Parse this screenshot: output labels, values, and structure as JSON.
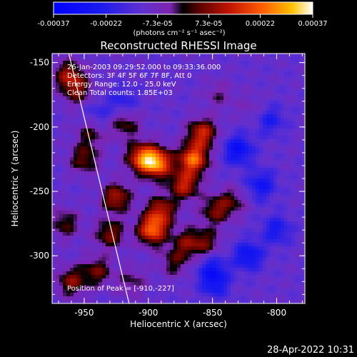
{
  "chart_data": {
    "type": "heatmap",
    "title": "Reconstructed RHESSI Image",
    "xlabel": "Heliocentric X (arcsec)",
    "ylabel": "Heliocentric Y (arcsec)",
    "xlim": [
      -975,
      -778
    ],
    "ylim": [
      -337,
      -143
    ],
    "x_ticks": [
      -950,
      -900,
      -850,
      -800
    ],
    "y_ticks": [
      -150,
      -200,
      -250,
      -300
    ],
    "colorbar": {
      "range": [
        -0.00037,
        0.00037
      ],
      "tick_values": [
        -0.00037,
        -0.00022,
        -7.3e-05,
        7.3e-05,
        0.00022,
        0.00037
      ],
      "tick_labels": [
        "-0.00037",
        "-0.00022",
        "-7.3e-05",
        "7.3e-05",
        "0.00022",
        "0.00037"
      ],
      "unit_label": "(photons cm⁻² s⁻¹ asec⁻²)"
    },
    "info_lines": [
      "26-Jan-2003 09:29:52.000 to 09:33:36.000",
      "Detectors: 3F 4F 5F 6F 7F 8F, Att 0",
      "Energy Range: 12.0 - 25.0 keV",
      "Clean    Total counts: 1.85E+03"
    ],
    "peak_label": "Position of Peak = [-910,-227]",
    "peak": [
      -910,
      -227
    ],
    "limb_line": [
      [
        -962,
        -143
      ],
      [
        -915,
        -337
      ]
    ],
    "blobs": [
      {
        "x": -893,
        "y": -228,
        "v": 0.00035
      },
      {
        "x": -905,
        "y": -224,
        "v": 0.0003
      },
      {
        "x": -865,
        "y": -225,
        "v": 0.00033
      },
      {
        "x": -858,
        "y": -205,
        "v": 0.00025
      },
      {
        "x": -872,
        "y": -245,
        "v": 0.00024
      },
      {
        "x": -897,
        "y": -280,
        "v": 0.00032
      },
      {
        "x": -890,
        "y": -265,
        "v": 0.00022
      },
      {
        "x": -925,
        "y": -255,
        "v": 0.00022
      },
      {
        "x": -930,
        "y": -283,
        "v": 0.00018
      },
      {
        "x": -940,
        "y": -312,
        "v": 0.00016
      },
      {
        "x": -960,
        "y": -320,
        "v": 0.00018
      },
      {
        "x": -962,
        "y": -160,
        "v": 0.0002
      },
      {
        "x": -955,
        "y": -172,
        "v": 0.00015
      },
      {
        "x": -950,
        "y": -225,
        "v": 0.00016
      },
      {
        "x": -945,
        "y": -205,
        "v": 0.00012
      },
      {
        "x": -918,
        "y": -198,
        "v": 0.00014
      },
      {
        "x": -848,
        "y": -265,
        "v": 0.00016
      },
      {
        "x": -855,
        "y": -290,
        "v": 0.00014
      },
      {
        "x": -835,
        "y": -258,
        "v": 0.00012
      },
      {
        "x": -880,
        "y": -305,
        "v": 0.00012
      },
      {
        "x": -870,
        "y": -290,
        "v": 0.00016
      },
      {
        "x": -965,
        "y": -275,
        "v": 0.00014
      },
      {
        "x": -913,
        "y": -320,
        "v": 0.0001
      },
      {
        "x": -845,
        "y": -175,
        "v": 8e-05
      },
      {
        "x": -820,
        "y": -185,
        "v": 5e-05
      }
    ],
    "negatives": [
      {
        "x": -830,
        "y": -218,
        "v": -0.0002
      },
      {
        "x": -812,
        "y": -245,
        "v": -0.00016
      },
      {
        "x": -822,
        "y": -300,
        "v": -0.00018
      },
      {
        "x": -850,
        "y": -310,
        "v": -0.00014
      },
      {
        "x": -800,
        "y": -280,
        "v": -0.00014
      },
      {
        "x": -805,
        "y": -195,
        "v": -0.00012
      },
      {
        "x": -848,
        "y": -322,
        "v": -0.00014
      },
      {
        "x": -920,
        "y": -180,
        "v": -0.0001
      },
      {
        "x": -940,
        "y": -190,
        "v": -8e-05
      }
    ]
  },
  "footer": {
    "timestamp": "28-Apr-2022 10:31"
  }
}
